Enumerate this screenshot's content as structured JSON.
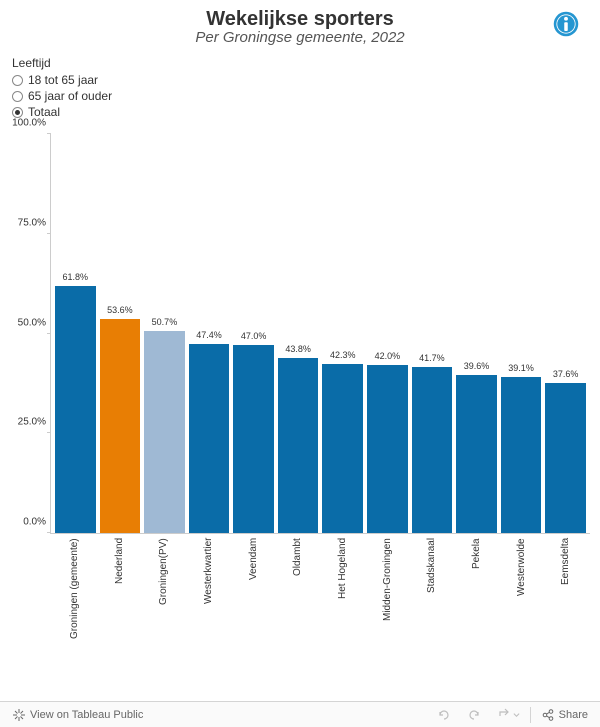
{
  "header": {
    "title": "Wekelijkse sporters",
    "subtitle": "Per Groningse gemeente, 2022"
  },
  "filter": {
    "title": "Leeftijd",
    "options": [
      {
        "label": "18 tot 65 jaar",
        "selected": false
      },
      {
        "label": "65 jaar of ouder",
        "selected": false
      },
      {
        "label": "Totaal",
        "selected": true
      }
    ]
  },
  "chart": {
    "type": "bar",
    "ylim": [
      0,
      100
    ],
    "yticks": [
      0,
      25,
      50,
      75,
      100
    ],
    "ytick_format": "{v}.0%",
    "default_color": "#0a6ca8",
    "categories": [
      {
        "name": "Groningen (gemeente)",
        "value": 61.8,
        "color": "#0a6ca8"
      },
      {
        "name": "Nederland",
        "value": 53.6,
        "color": "#e87e04"
      },
      {
        "name": "Groningen(PV)",
        "value": 50.7,
        "color": "#9fb9d4"
      },
      {
        "name": "Westerkwartier",
        "value": 47.4,
        "color": "#0a6ca8"
      },
      {
        "name": "Veendam",
        "value": 47.0,
        "color": "#0a6ca8"
      },
      {
        "name": "Oldambt",
        "value": 43.8,
        "color": "#0a6ca8"
      },
      {
        "name": "Het Hogeland",
        "value": 42.3,
        "color": "#0a6ca8"
      },
      {
        "name": "Midden-Groningen",
        "value": 42.0,
        "color": "#0a6ca8"
      },
      {
        "name": "Stadskanaal",
        "value": 41.7,
        "color": "#0a6ca8"
      },
      {
        "name": "Pekela",
        "value": 39.6,
        "color": "#0a6ca8"
      },
      {
        "name": "Westerwolde",
        "value": 39.1,
        "color": "#0a6ca8"
      },
      {
        "name": "Eemsdelta",
        "value": 37.6,
        "color": "#0a6ca8"
      }
    ]
  },
  "toolbar": {
    "view_label": "View on Tableau Public",
    "share_label": "Share"
  }
}
